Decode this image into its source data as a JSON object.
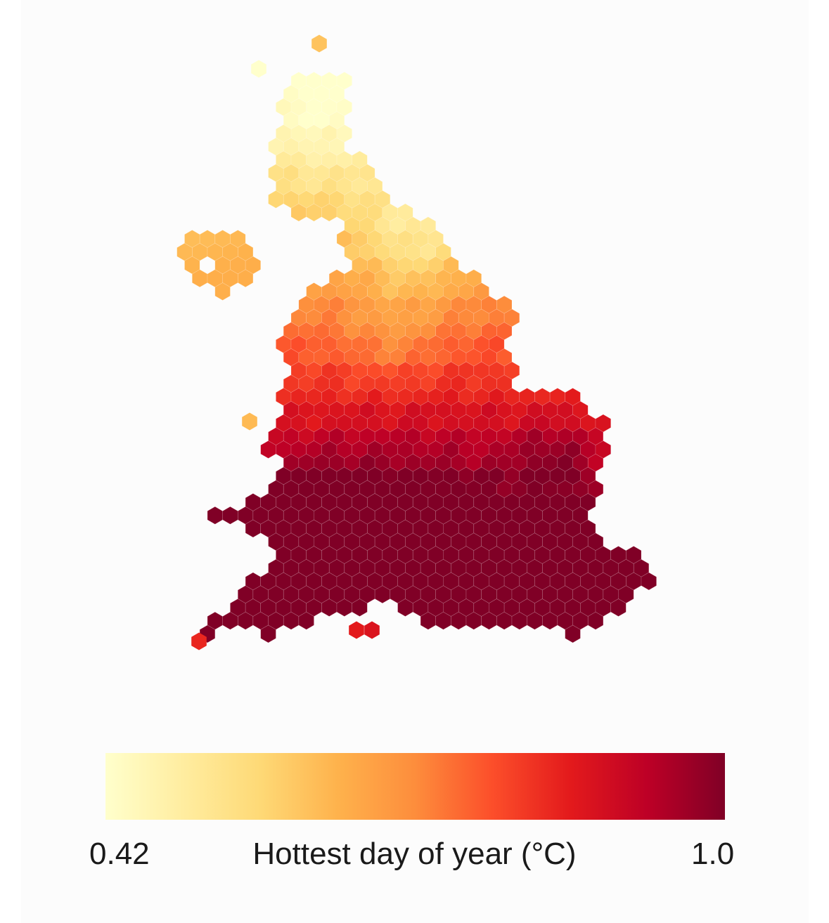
{
  "map": {
    "type": "hex-choropleth",
    "region": "Great Britain (England, Wales, southern Scotland) and Isle of Man",
    "colorscale": [
      "#ffffcc",
      "#ffeda0",
      "#fed976",
      "#feb24c",
      "#fd8d3c",
      "#fc4e2a",
      "#e31a1c",
      "#bd0026",
      "#800026"
    ],
    "value_range": [
      0.42,
      1.0
    ],
    "pattern": "Lowest values (pale yellow) in the north, around the Scottish borders and Northumberland; orange across northern England and the Isle of Man; deep red across the Midlands, Wales and southern England, darkest in south Wales/Bristol Channel and the Thames estuary / London area."
  },
  "colorbar": {
    "min_label": "0.42",
    "max_label": "1.0",
    "title": "Hottest day of year (°C)",
    "colors": [
      "#ffffcc",
      "#ffeda0",
      "#fed976",
      "#feb24c",
      "#fd8d3c",
      "#fc4e2a",
      "#e31a1c",
      "#bd0026",
      "#800026"
    ]
  }
}
